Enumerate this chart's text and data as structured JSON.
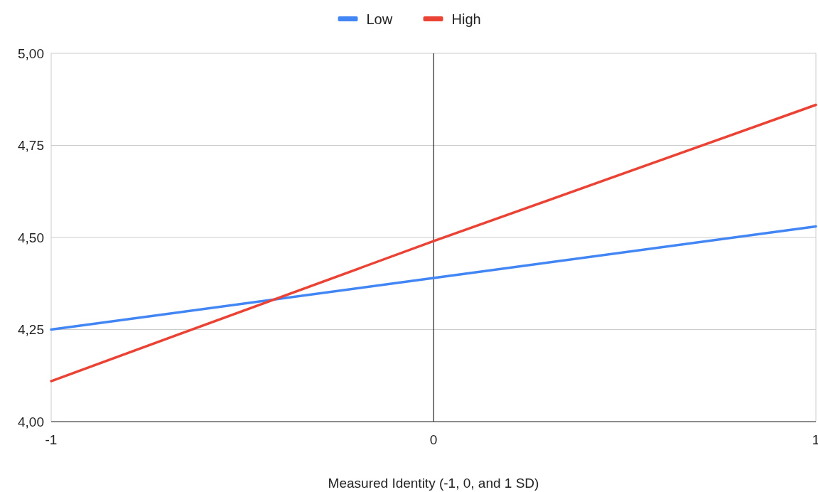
{
  "chart_data": {
    "type": "line",
    "xlabel": "Measured Identity (-1, 0, and 1 SD)",
    "x": [
      -1,
      0,
      1
    ],
    "series": [
      {
        "name": "Low",
        "color": "#4285f4",
        "values": [
          4.25,
          4.39,
          4.53
        ]
      },
      {
        "name": "High",
        "color": "#ea4335",
        "values": [
          4.11,
          4.49,
          4.86
        ]
      }
    ],
    "xlim": [
      -1,
      1
    ],
    "xticks": [
      -1,
      0,
      1
    ],
    "ylim": [
      4,
      5
    ],
    "yticks": [
      {
        "value": 4,
        "label": "4,00"
      },
      {
        "value": 4.25,
        "label": "4,25"
      },
      {
        "value": 4.5,
        "label": "4,50"
      },
      {
        "value": 4.75,
        "label": "4,75"
      },
      {
        "value": 5,
        "label": "5,00"
      }
    ],
    "ref_lines": [
      {
        "axis": "x",
        "value": 0,
        "color": "#333333"
      }
    ],
    "grid": "y",
    "legend": "top",
    "marker": "none",
    "line_style": "solid"
  }
}
